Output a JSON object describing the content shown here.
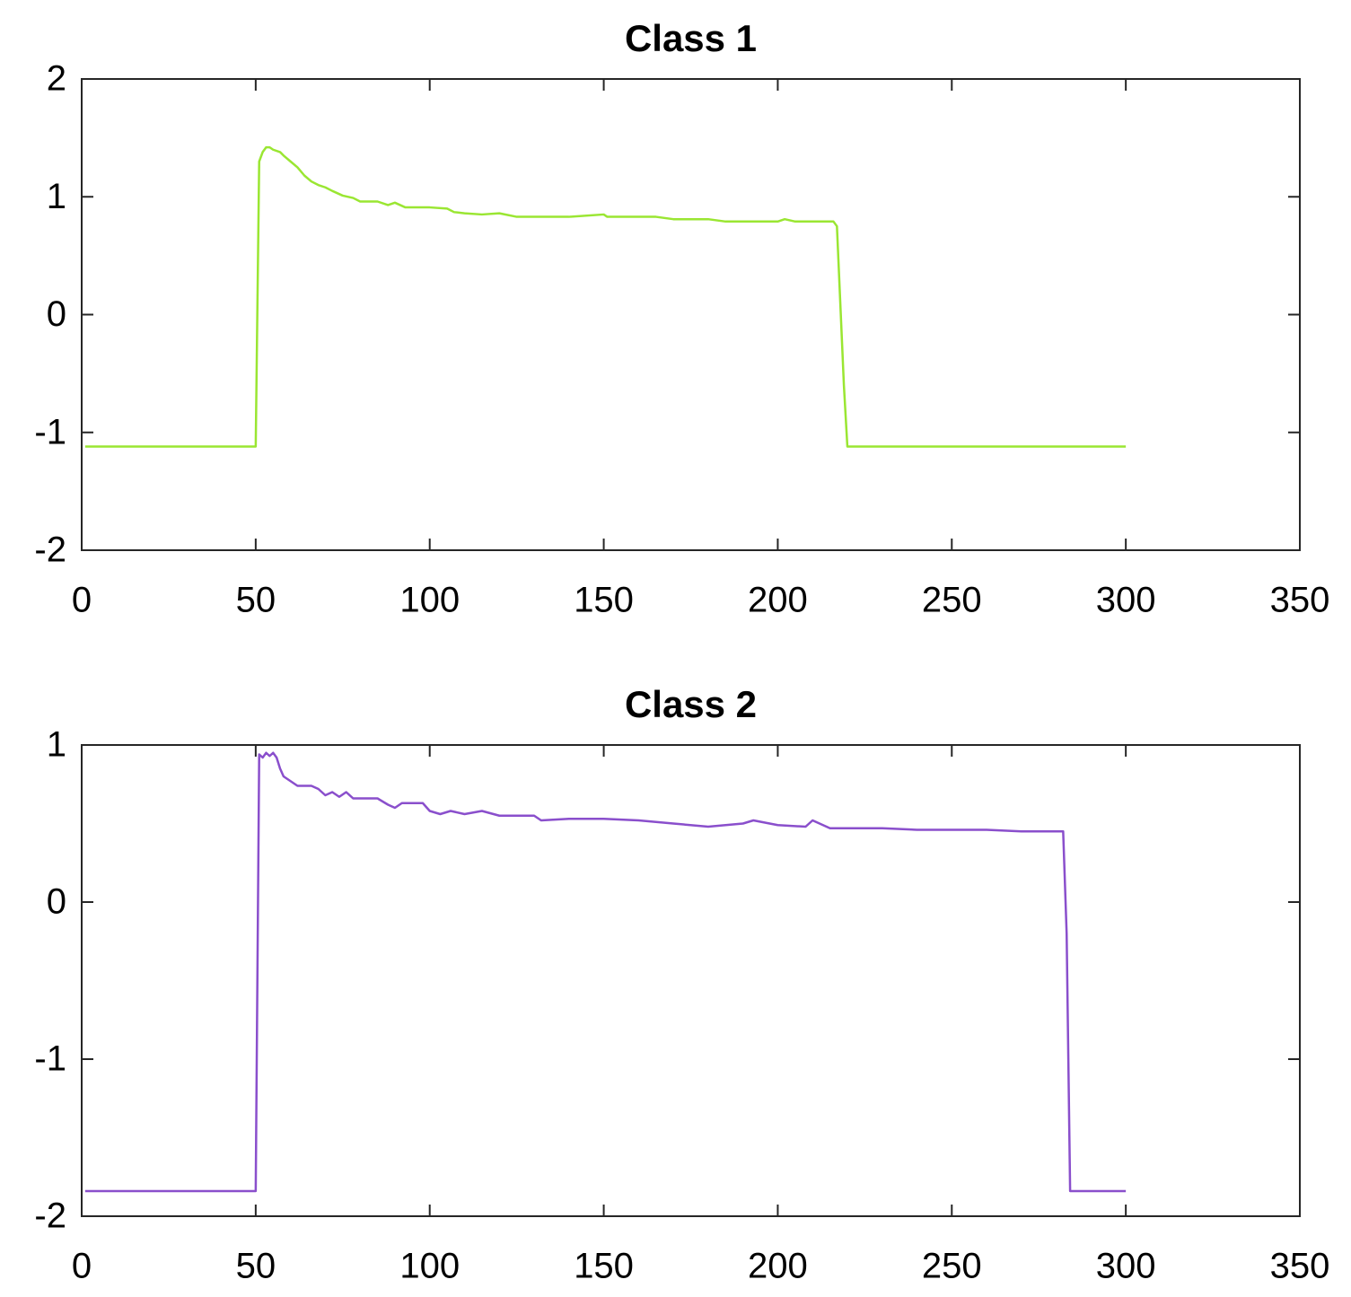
{
  "chart_data": [
    {
      "type": "line",
      "title": "Class 1",
      "x": [
        1,
        50,
        51,
        52,
        53,
        54,
        55,
        57,
        58,
        60,
        62,
        64,
        66,
        68,
        70,
        72,
        75,
        78,
        80,
        85,
        88,
        90,
        93,
        100,
        105,
        107,
        110,
        115,
        120,
        125,
        140,
        150,
        151,
        165,
        170,
        180,
        185,
        200,
        202,
        205,
        210,
        216,
        217,
        219,
        220,
        250,
        300
      ],
      "series": [
        {
          "name": "Class 1",
          "color": "#9ae632",
          "values": [
            -1.12,
            -1.12,
            1.3,
            1.38,
            1.42,
            1.42,
            1.4,
            1.38,
            1.35,
            1.3,
            1.25,
            1.18,
            1.13,
            1.1,
            1.08,
            1.05,
            1.01,
            0.99,
            0.96,
            0.96,
            0.93,
            0.95,
            0.91,
            0.91,
            0.9,
            0.87,
            0.86,
            0.85,
            0.86,
            0.83,
            0.83,
            0.85,
            0.83,
            0.83,
            0.81,
            0.81,
            0.79,
            0.79,
            0.81,
            0.79,
            0.79,
            0.79,
            0.75,
            -0.6,
            -1.12,
            -1.12,
            -1.12
          ]
        }
      ],
      "xlim": [
        0,
        350
      ],
      "xticks": [
        0,
        50,
        100,
        150,
        200,
        250,
        300,
        350
      ],
      "ylim": [
        -2,
        2
      ],
      "yticks": [
        -2,
        -1,
        0,
        1,
        2
      ],
      "grid": false
    },
    {
      "type": "line",
      "title": "Class 2",
      "x": [
        1,
        50,
        51,
        52,
        53,
        54,
        55,
        56,
        57,
        58,
        60,
        62,
        66,
        68,
        70,
        72,
        74,
        76,
        78,
        85,
        88,
        90,
        92,
        98,
        100,
        103,
        106,
        110,
        115,
        120,
        130,
        132,
        140,
        150,
        160,
        170,
        180,
        190,
        193,
        200,
        208,
        210,
        215,
        230,
        240,
        260,
        270,
        280,
        282,
        283,
        284,
        300
      ],
      "series": [
        {
          "name": "Class 2",
          "color": "#8a4fcc",
          "values": [
            -1.84,
            -1.84,
            0.94,
            0.92,
            0.95,
            0.93,
            0.95,
            0.92,
            0.85,
            0.8,
            0.77,
            0.74,
            0.74,
            0.72,
            0.68,
            0.7,
            0.67,
            0.7,
            0.66,
            0.66,
            0.62,
            0.6,
            0.63,
            0.63,
            0.58,
            0.56,
            0.58,
            0.56,
            0.58,
            0.55,
            0.55,
            0.52,
            0.53,
            0.53,
            0.52,
            0.5,
            0.48,
            0.5,
            0.52,
            0.49,
            0.48,
            0.52,
            0.47,
            0.47,
            0.46,
            0.46,
            0.45,
            0.45,
            0.45,
            -0.2,
            -1.84,
            -1.84
          ]
        }
      ],
      "xlim": [
        0,
        350
      ],
      "xticks": [
        0,
        50,
        100,
        150,
        200,
        250,
        300,
        350
      ],
      "ylim": [
        -2,
        1
      ],
      "yticks": [
        -2,
        -1,
        0,
        1
      ],
      "grid": false
    }
  ]
}
